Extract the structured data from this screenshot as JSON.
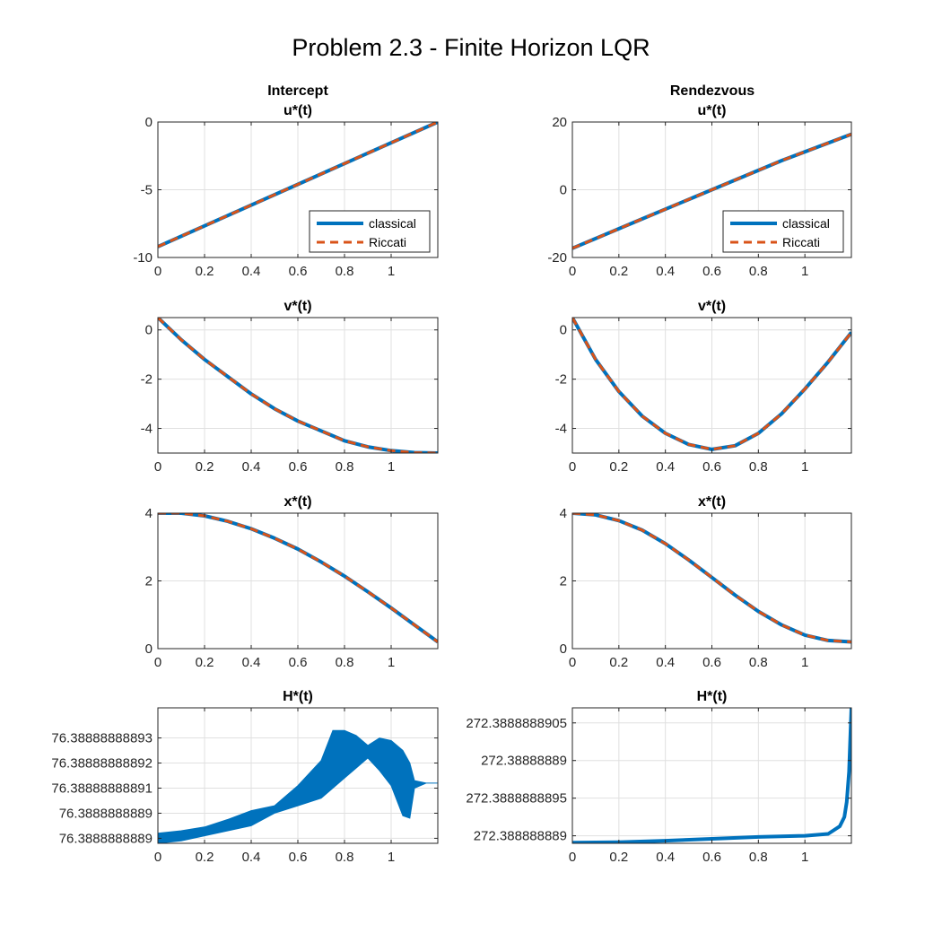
{
  "figure": {
    "title": "Problem 2.3 - Finite Horizon LQR",
    "colors": {
      "classical": "#0072BD",
      "riccati": "#D95319",
      "grid": "#e0e0e0",
      "axes": "#262626"
    }
  },
  "chart_data": [
    {
      "id": "intercept-u",
      "type": "line",
      "column_title": "Intercept",
      "title": "u*(t)",
      "xlim": [
        0,
        1.2
      ],
      "ylim": [
        -10,
        0
      ],
      "xticks": [
        "0",
        "0.2",
        "0.4",
        "0.6",
        "0.8",
        "1"
      ],
      "xtick_values": [
        0,
        0.2,
        0.4,
        0.6,
        0.8,
        1
      ],
      "yticks": [
        "-10",
        "-5",
        "0"
      ],
      "ytick_values": [
        -10,
        -5,
        0
      ],
      "legend": [
        "classical",
        "Riccati"
      ],
      "legend_position": "bottom-right",
      "series": [
        {
          "name": "classical",
          "x": [
            0,
            0.3,
            0.6,
            0.9,
            1.2
          ],
          "y": [
            -9.2,
            -6.9,
            -4.6,
            -2.3,
            0
          ]
        },
        {
          "name": "Riccati",
          "x": [
            0,
            0.3,
            0.6,
            0.9,
            1.2
          ],
          "y": [
            -9.2,
            -6.9,
            -4.6,
            -2.3,
            0
          ]
        }
      ]
    },
    {
      "id": "rendezvous-u",
      "type": "line",
      "column_title": "Rendezvous",
      "title": "u*(t)",
      "xlim": [
        0,
        1.2
      ],
      "ylim": [
        -20,
        20
      ],
      "xticks": [
        "0",
        "0.2",
        "0.4",
        "0.6",
        "0.8",
        "1"
      ],
      "xtick_values": [
        0,
        0.2,
        0.4,
        0.6,
        0.8,
        1
      ],
      "yticks": [
        "-20",
        "0",
        "20"
      ],
      "ytick_values": [
        -20,
        0,
        20
      ],
      "legend": [
        "classical",
        "Riccati"
      ],
      "legend_position": "bottom-right",
      "series": [
        {
          "name": "classical",
          "x": [
            0,
            0.3,
            0.6,
            0.9,
            1.2
          ],
          "y": [
            -17.3,
            -8.6,
            0,
            8.6,
            16.4
          ]
        },
        {
          "name": "Riccati",
          "x": [
            0,
            0.3,
            0.6,
            0.9,
            1.2
          ],
          "y": [
            -17.3,
            -8.6,
            0,
            8.6,
            16.4
          ]
        }
      ]
    },
    {
      "id": "intercept-v",
      "type": "line",
      "title": "v*(t)",
      "xlim": [
        0,
        1.2
      ],
      "ylim": [
        -5,
        0.5
      ],
      "xticks": [
        "0",
        "0.2",
        "0.4",
        "0.6",
        "0.8",
        "1"
      ],
      "xtick_values": [
        0,
        0.2,
        0.4,
        0.6,
        0.8,
        1
      ],
      "yticks": [
        "-4",
        "-2",
        "0"
      ],
      "ytick_values": [
        -4,
        -2,
        0
      ],
      "series": [
        {
          "name": "classical",
          "x": [
            0,
            0.1,
            0.2,
            0.3,
            0.4,
            0.5,
            0.6,
            0.7,
            0.8,
            0.9,
            1.0,
            1.1,
            1.2
          ],
          "y": [
            0.5,
            -0.4,
            -1.2,
            -1.9,
            -2.6,
            -3.2,
            -3.7,
            -4.1,
            -4.5,
            -4.75,
            -4.9,
            -4.98,
            -5.0
          ]
        },
        {
          "name": "Riccati",
          "x": [
            0,
            0.1,
            0.2,
            0.3,
            0.4,
            0.5,
            0.6,
            0.7,
            0.8,
            0.9,
            1.0,
            1.1,
            1.2
          ],
          "y": [
            0.5,
            -0.4,
            -1.2,
            -1.9,
            -2.6,
            -3.2,
            -3.7,
            -4.1,
            -4.5,
            -4.75,
            -4.9,
            -4.98,
            -5.0
          ]
        }
      ]
    },
    {
      "id": "rendezvous-v",
      "type": "line",
      "title": "v*(t)",
      "xlim": [
        0,
        1.2
      ],
      "ylim": [
        -5,
        0.5
      ],
      "xticks": [
        "0",
        "0.2",
        "0.4",
        "0.6",
        "0.8",
        "1"
      ],
      "xtick_values": [
        0,
        0.2,
        0.4,
        0.6,
        0.8,
        1
      ],
      "yticks": [
        "-4",
        "-2",
        "0"
      ],
      "ytick_values": [
        -4,
        -2,
        0
      ],
      "series": [
        {
          "name": "classical",
          "x": [
            0,
            0.1,
            0.2,
            0.3,
            0.4,
            0.5,
            0.6,
            0.7,
            0.8,
            0.9,
            1.0,
            1.1,
            1.2
          ],
          "y": [
            0.5,
            -1.2,
            -2.5,
            -3.5,
            -4.2,
            -4.65,
            -4.85,
            -4.7,
            -4.2,
            -3.4,
            -2.4,
            -1.3,
            -0.1
          ]
        },
        {
          "name": "Riccati",
          "x": [
            0,
            0.1,
            0.2,
            0.3,
            0.4,
            0.5,
            0.6,
            0.7,
            0.8,
            0.9,
            1.0,
            1.1,
            1.2
          ],
          "y": [
            0.5,
            -1.2,
            -2.5,
            -3.5,
            -4.2,
            -4.65,
            -4.85,
            -4.7,
            -4.2,
            -3.4,
            -2.4,
            -1.3,
            -0.1
          ]
        }
      ]
    },
    {
      "id": "intercept-x",
      "type": "line",
      "title": "x*(t)",
      "xlim": [
        0,
        1.2
      ],
      "ylim": [
        0,
        4
      ],
      "xticks": [
        "0",
        "0.2",
        "0.4",
        "0.6",
        "0.8",
        "1"
      ],
      "xtick_values": [
        0,
        0.2,
        0.4,
        0.6,
        0.8,
        1
      ],
      "yticks": [
        "0",
        "2",
        "4"
      ],
      "ytick_values": [
        0,
        2,
        4
      ],
      "series": [
        {
          "name": "classical",
          "x": [
            0,
            0.1,
            0.2,
            0.3,
            0.4,
            0.5,
            0.6,
            0.7,
            0.8,
            0.9,
            1.0,
            1.1,
            1.2
          ],
          "y": [
            4.0,
            4.0,
            3.92,
            3.76,
            3.54,
            3.26,
            2.94,
            2.56,
            2.14,
            1.68,
            1.2,
            0.7,
            0.2
          ]
        },
        {
          "name": "Riccati",
          "x": [
            0,
            0.1,
            0.2,
            0.3,
            0.4,
            0.5,
            0.6,
            0.7,
            0.8,
            0.9,
            1.0,
            1.1,
            1.2
          ],
          "y": [
            4.0,
            4.0,
            3.92,
            3.76,
            3.54,
            3.26,
            2.94,
            2.56,
            2.14,
            1.68,
            1.2,
            0.7,
            0.2
          ]
        }
      ]
    },
    {
      "id": "rendezvous-x",
      "type": "line",
      "title": "x*(t)",
      "xlim": [
        0,
        1.2
      ],
      "ylim": [
        0,
        4
      ],
      "xticks": [
        "0",
        "0.2",
        "0.4",
        "0.6",
        "0.8",
        "1"
      ],
      "xtick_values": [
        0,
        0.2,
        0.4,
        0.6,
        0.8,
        1
      ],
      "yticks": [
        "0",
        "2",
        "4"
      ],
      "ytick_values": [
        0,
        2,
        4
      ],
      "series": [
        {
          "name": "classical",
          "x": [
            0,
            0.1,
            0.2,
            0.3,
            0.4,
            0.5,
            0.6,
            0.7,
            0.8,
            0.9,
            1.0,
            1.1,
            1.2
          ],
          "y": [
            4.0,
            3.95,
            3.78,
            3.5,
            3.1,
            2.62,
            2.1,
            1.58,
            1.1,
            0.7,
            0.4,
            0.24,
            0.2
          ]
        },
        {
          "name": "Riccati",
          "x": [
            0,
            0.1,
            0.2,
            0.3,
            0.4,
            0.5,
            0.6,
            0.7,
            0.8,
            0.9,
            1.0,
            1.1,
            1.2
          ],
          "y": [
            4.0,
            3.95,
            3.78,
            3.5,
            3.1,
            2.62,
            2.1,
            1.58,
            1.1,
            0.7,
            0.4,
            0.24,
            0.2
          ]
        }
      ]
    },
    {
      "id": "intercept-h",
      "type": "area",
      "title": "H*(t)",
      "xlim": [
        0,
        1.2
      ],
      "ylim": [
        0,
        5.4
      ],
      "xticks": [
        "0",
        "0.2",
        "0.4",
        "0.6",
        "0.8",
        "1"
      ],
      "xtick_values": [
        0,
        0.2,
        0.4,
        0.6,
        0.8,
        1
      ],
      "yticks": [
        "76.3888888889",
        "76.3888888889",
        "76.38888888891",
        "76.38888888892",
        "76.38888888893"
      ],
      "ytick_values": [
        0.2,
        1.2,
        2.2,
        3.2,
        4.2
      ],
      "series": [
        {
          "name": "classical",
          "x": [
            0,
            0.1,
            0.2,
            0.3,
            0.4,
            0.5,
            0.6,
            0.7,
            0.75,
            0.8,
            0.85,
            0.9,
            0.95,
            1.0,
            1.05,
            1.08,
            1.1,
            1.15,
            1.2
          ],
          "upper": [
            0.4,
            0.5,
            0.65,
            0.95,
            1.3,
            1.5,
            2.3,
            3.3,
            4.5,
            4.5,
            4.3,
            3.9,
            4.2,
            4.1,
            3.7,
            3.2,
            2.5,
            2.4,
            2.4
          ],
          "lower": [
            0.0,
            0.1,
            0.3,
            0.5,
            0.7,
            1.2,
            1.5,
            1.8,
            2.2,
            2.6,
            3.0,
            3.4,
            2.9,
            2.3,
            1.1,
            1.0,
            2.2,
            2.4,
            2.4
          ]
        }
      ]
    },
    {
      "id": "rendezvous-h",
      "type": "line",
      "title": "H*(t)",
      "xlim": [
        0,
        1.2
      ],
      "ylim": [
        0,
        3.6
      ],
      "xticks": [
        "0",
        "0.2",
        "0.4",
        "0.6",
        "0.8",
        "1"
      ],
      "xtick_values": [
        0,
        0.2,
        0.4,
        0.6,
        0.8,
        1
      ],
      "yticks": [
        "272.388888889",
        "272.3888888895",
        "272.38888889",
        "272.3888888905"
      ],
      "ytick_values": [
        0.2,
        1.2,
        2.2,
        3.2
      ],
      "series": [
        {
          "name": "classical",
          "x": [
            0,
            0.2,
            0.4,
            0.6,
            0.8,
            1.0,
            1.1,
            1.15,
            1.17,
            1.18,
            1.19,
            1.2
          ],
          "y": [
            0.02,
            0.03,
            0.07,
            0.12,
            0.17,
            0.2,
            0.25,
            0.45,
            0.7,
            1.1,
            1.9,
            3.6
          ]
        }
      ]
    }
  ]
}
